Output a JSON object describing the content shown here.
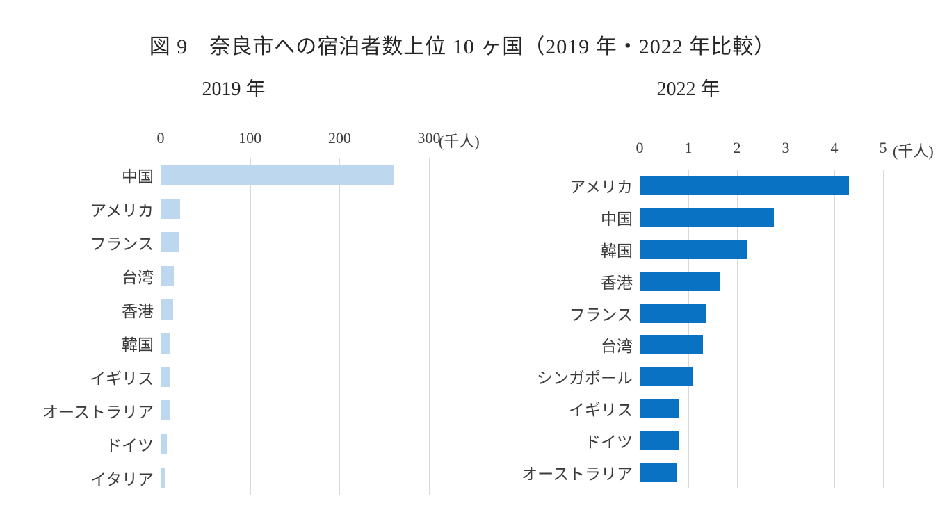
{
  "page": {
    "title": "図 9　奈良市への宿泊者数上位 10 ヶ国（2019 年・2022 年比較）"
  },
  "colors": {
    "bar_2019": "#BDD7EE",
    "bar_2022": "#0A72C2",
    "gridline": "#D9D9D9",
    "text": "#3b3b3b"
  },
  "chart_data": [
    {
      "type": "bar",
      "orientation": "horizontal",
      "title": "2019 年",
      "unit_label": "(千人)",
      "categories": [
        "中国",
        "アメリカ",
        "フランス",
        "台湾",
        "香港",
        "韓国",
        "イギリス",
        "オーストラリア",
        "ドイツ",
        "イタリア"
      ],
      "values": [
        260,
        22,
        21,
        15,
        14,
        11,
        10,
        10,
        7,
        5
      ],
      "x_ticks": [
        0,
        100,
        200,
        300
      ],
      "xlim": [
        0,
        300
      ],
      "grid": true,
      "legend": "none",
      "bar_color": "#BDD7EE"
    },
    {
      "type": "bar",
      "orientation": "horizontal",
      "title": "2022 年",
      "unit_label": "(千人)",
      "categories": [
        "アメリカ",
        "中国",
        "韓国",
        "香港",
        "フランス",
        "台湾",
        "シンガポール",
        "イギリス",
        "ドイツ",
        "オーストラリア"
      ],
      "values": [
        4.3,
        2.75,
        2.2,
        1.65,
        1.35,
        1.3,
        1.1,
        0.8,
        0.8,
        0.75
      ],
      "x_ticks": [
        0,
        1,
        2,
        3,
        4,
        5
      ],
      "xlim": [
        0,
        5
      ],
      "grid": true,
      "legend": "none",
      "bar_color": "#0A72C2"
    }
  ]
}
